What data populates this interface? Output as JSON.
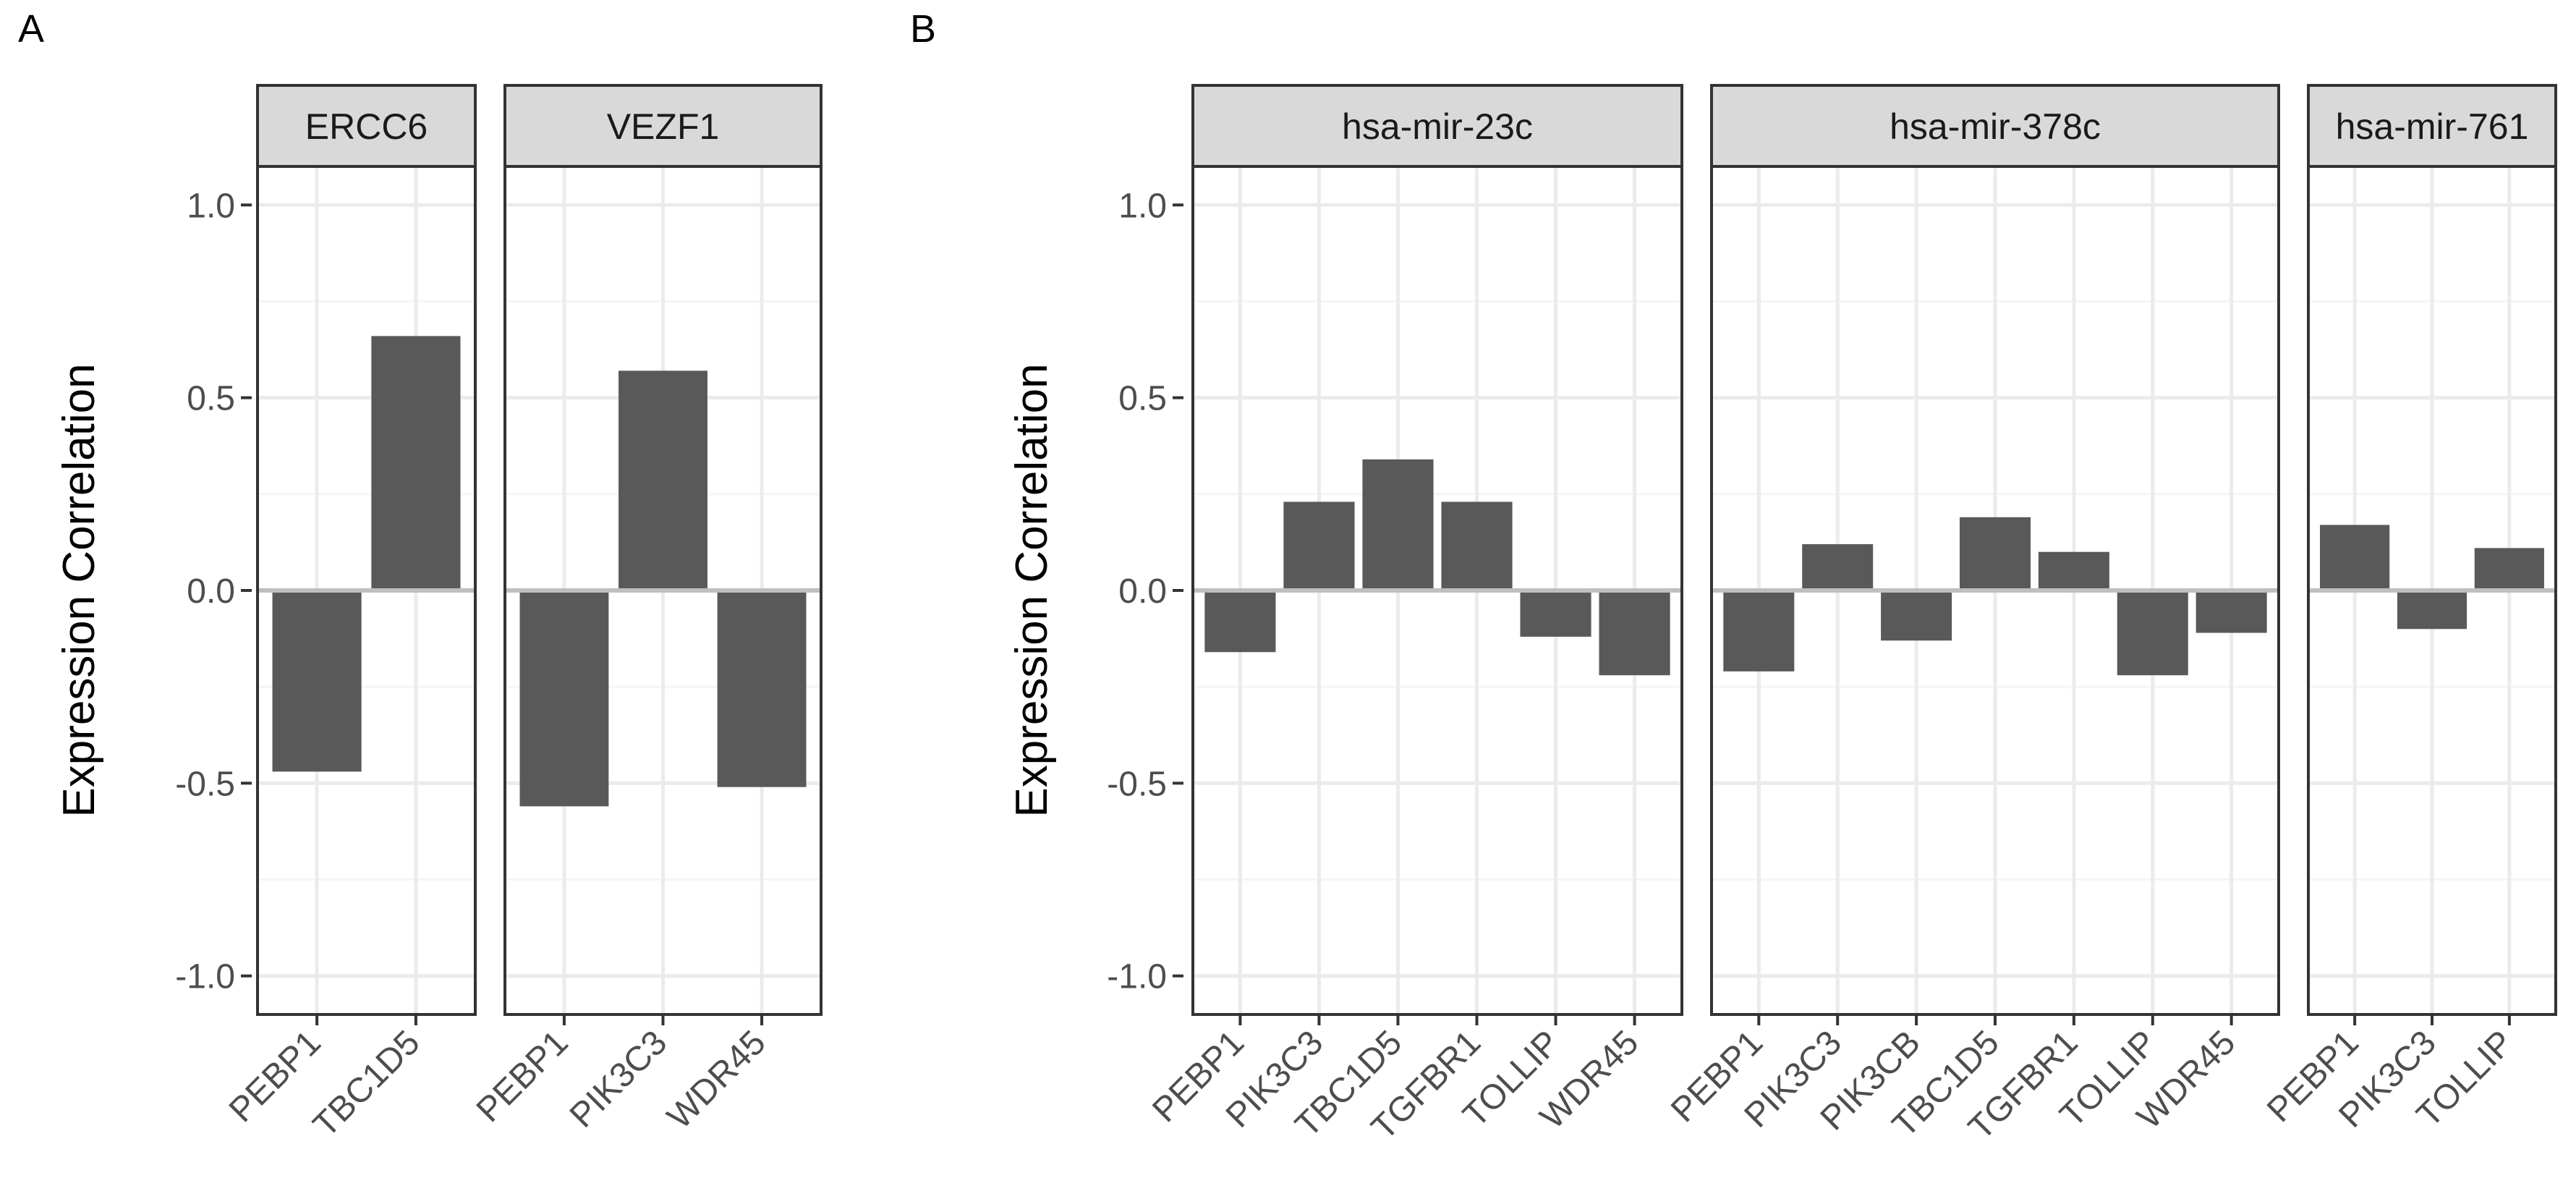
{
  "chart_data": [
    {
      "panel_label": "A",
      "type": "bar",
      "ylabel": "Expression Correlation",
      "ylim": [
        -1.1,
        1.1
      ],
      "yticks": [
        -1.0,
        -0.5,
        0.0,
        0.5,
        1.0
      ],
      "ytick_labels": [
        "-1.0",
        "-0.5",
        "0.0",
        "0.5",
        "1.0"
      ],
      "grid": true,
      "facets": [
        {
          "title": "ERCC6",
          "categories": [
            "PEBP1",
            "TBC1D5"
          ],
          "values": [
            -0.47,
            0.66
          ]
        },
        {
          "title": "VEZF1",
          "categories": [
            "PEBP1",
            "PIK3C3",
            "WDR45"
          ],
          "values": [
            -0.56,
            0.57,
            -0.51
          ]
        }
      ]
    },
    {
      "panel_label": "B",
      "type": "bar",
      "ylabel": "Expression Correlation",
      "ylim": [
        -1.1,
        1.1
      ],
      "yticks": [
        -1.0,
        -0.5,
        0.0,
        0.5,
        1.0
      ],
      "ytick_labels": [
        "-1.0",
        "-0.5",
        "0.0",
        "0.5",
        "1.0"
      ],
      "grid": true,
      "facets": [
        {
          "title": "hsa-mir-23c",
          "categories": [
            "PEBP1",
            "PIK3C3",
            "TBC1D5",
            "TGFBR1",
            "TOLLIP",
            "WDR45"
          ],
          "values": [
            -0.16,
            0.23,
            0.34,
            0.23,
            -0.12,
            -0.22
          ]
        },
        {
          "title": "hsa-mir-378c",
          "categories": [
            "PEBP1",
            "PIK3C3",
            "PIK3CB",
            "TBC1D5",
            "TGFBR1",
            "TOLLIP",
            "WDR45"
          ],
          "values": [
            -0.21,
            0.12,
            -0.13,
            0.19,
            0.1,
            -0.22,
            -0.11
          ]
        },
        {
          "title": "hsa-mir-761",
          "categories": [
            "PEBP1",
            "PIK3C3",
            "TOLLIP"
          ],
          "values": [
            0.17,
            -0.1,
            0.11
          ]
        }
      ]
    }
  ],
  "colors": {
    "bar": "#595959",
    "strip_fill": "#d9d9d9",
    "panel_border": "#333333",
    "grid_major": "#ebebeb",
    "grid_minor": "#f5f5f5",
    "zero_line": "#bfbfbf"
  }
}
